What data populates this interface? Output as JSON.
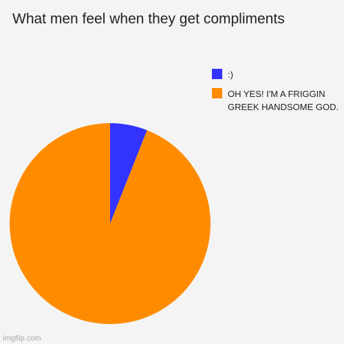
{
  "chart_data": {
    "type": "pie",
    "title": "What men feel when they get compliments",
    "categories": [
      ":)",
      "OH YES! I'M A FRIGGIN GREEK HANDSOME GOD."
    ],
    "values": [
      6,
      94
    ],
    "colors": [
      "#3333ff",
      "#ff8c00"
    ]
  },
  "watermark": "imgflip.com"
}
